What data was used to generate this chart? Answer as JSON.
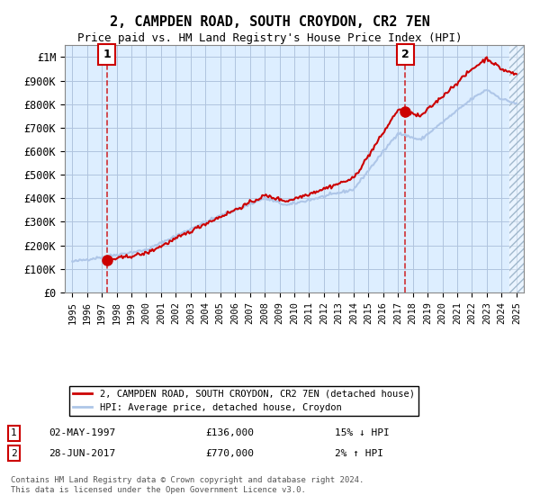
{
  "title": "2, CAMPDEN ROAD, SOUTH CROYDON, CR2 7EN",
  "subtitle": "Price paid vs. HM Land Registry's House Price Index (HPI)",
  "sale1_date": "02-MAY-1997",
  "sale1_price": 136000,
  "sale1_label": "15% ↓ HPI",
  "sale1_year": 1997.33,
  "sale2_date": "28-JUN-2017",
  "sale2_price": 770000,
  "sale2_label": "2% ↑ HPI",
  "sale2_year": 2017.5,
  "legend_line1": "2, CAMPDEN ROAD, SOUTH CROYDON, CR2 7EN (detached house)",
  "legend_line2": "HPI: Average price, detached house, Croydon",
  "footer": "Contains HM Land Registry data © Crown copyright and database right 2024.\nThis data is licensed under the Open Government Licence v3.0.",
  "xlim": [
    1994.5,
    2025.5
  ],
  "ylim": [
    0,
    1050000
  ],
  "yticks": [
    0,
    100000,
    200000,
    300000,
    400000,
    500000,
    600000,
    700000,
    800000,
    900000,
    1000000
  ],
  "ytick_labels": [
    "£0",
    "£100K",
    "£200K",
    "£300K",
    "£400K",
    "£500K",
    "£600K",
    "£700K",
    "£800K",
    "£900K",
    "£1M"
  ],
  "xticks": [
    1995,
    1996,
    1997,
    1998,
    1999,
    2000,
    2001,
    2002,
    2003,
    2004,
    2005,
    2006,
    2007,
    2008,
    2009,
    2010,
    2011,
    2012,
    2013,
    2014,
    2015,
    2016,
    2017,
    2018,
    2019,
    2020,
    2021,
    2022,
    2023,
    2024,
    2025
  ],
  "hpi_color": "#aec6e8",
  "price_color": "#cc0000",
  "bg_color": "#ddeeff",
  "hatch_color": "#c8d8e8",
  "grid_color": "#b0c4de"
}
